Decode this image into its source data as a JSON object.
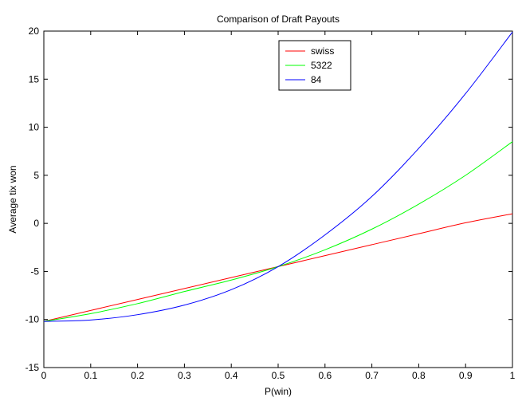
{
  "chart_data": {
    "type": "line",
    "title": "Comparison of Draft Payouts",
    "xlabel": "P(win)",
    "ylabel": "Average tix won",
    "xlim": [
      0,
      1
    ],
    "ylim": [
      -15,
      20
    ],
    "xticks": [
      0,
      0.1,
      0.2,
      0.3,
      0.4,
      0.5,
      0.6,
      0.7,
      0.8,
      0.9,
      1
    ],
    "xtick_labels": [
      "0",
      "0.1",
      "0.2",
      "0.3",
      "0.4",
      "0.5",
      "0.6",
      "0.7",
      "0.8",
      "0.9",
      "1"
    ],
    "yticks": [
      -15,
      -10,
      -5,
      0,
      5,
      10,
      15,
      20
    ],
    "ytick_labels": [
      "-15",
      "-10",
      "-5",
      "0",
      "5",
      "10",
      "15",
      "20"
    ],
    "grid": false,
    "legend_position": "top-right",
    "series": [
      {
        "name": "swiss",
        "color": "#ff0000",
        "x": [
          0,
          0.1,
          0.2,
          0.3,
          0.4,
          0.5,
          0.6,
          0.7,
          0.8,
          0.9,
          1
        ],
        "values": [
          -10.2,
          -9.06,
          -7.92,
          -6.78,
          -5.64,
          -4.5,
          -3.36,
          -2.22,
          -1.08,
          0.06,
          1.0
        ]
      },
      {
        "name": "5322",
        "color": "#00ff00",
        "x": [
          0,
          0.1,
          0.2,
          0.3,
          0.4,
          0.5,
          0.6,
          0.7,
          0.8,
          0.9,
          1
        ],
        "values": [
          -10.2,
          -9.39,
          -8.35,
          -7.09,
          -5.9,
          -4.5,
          -2.75,
          -0.6,
          2.0,
          5.0,
          8.5
        ]
      },
      {
        "name": "84",
        "color": "#0000ff",
        "x": [
          0,
          0.1,
          0.2,
          0.3,
          0.4,
          0.5,
          0.6,
          0.7,
          0.8,
          0.9,
          1
        ],
        "values": [
          -10.2,
          -10.05,
          -9.5,
          -8.5,
          -6.9,
          -4.5,
          -1.2,
          2.8,
          7.8,
          13.5,
          19.9
        ]
      }
    ]
  }
}
